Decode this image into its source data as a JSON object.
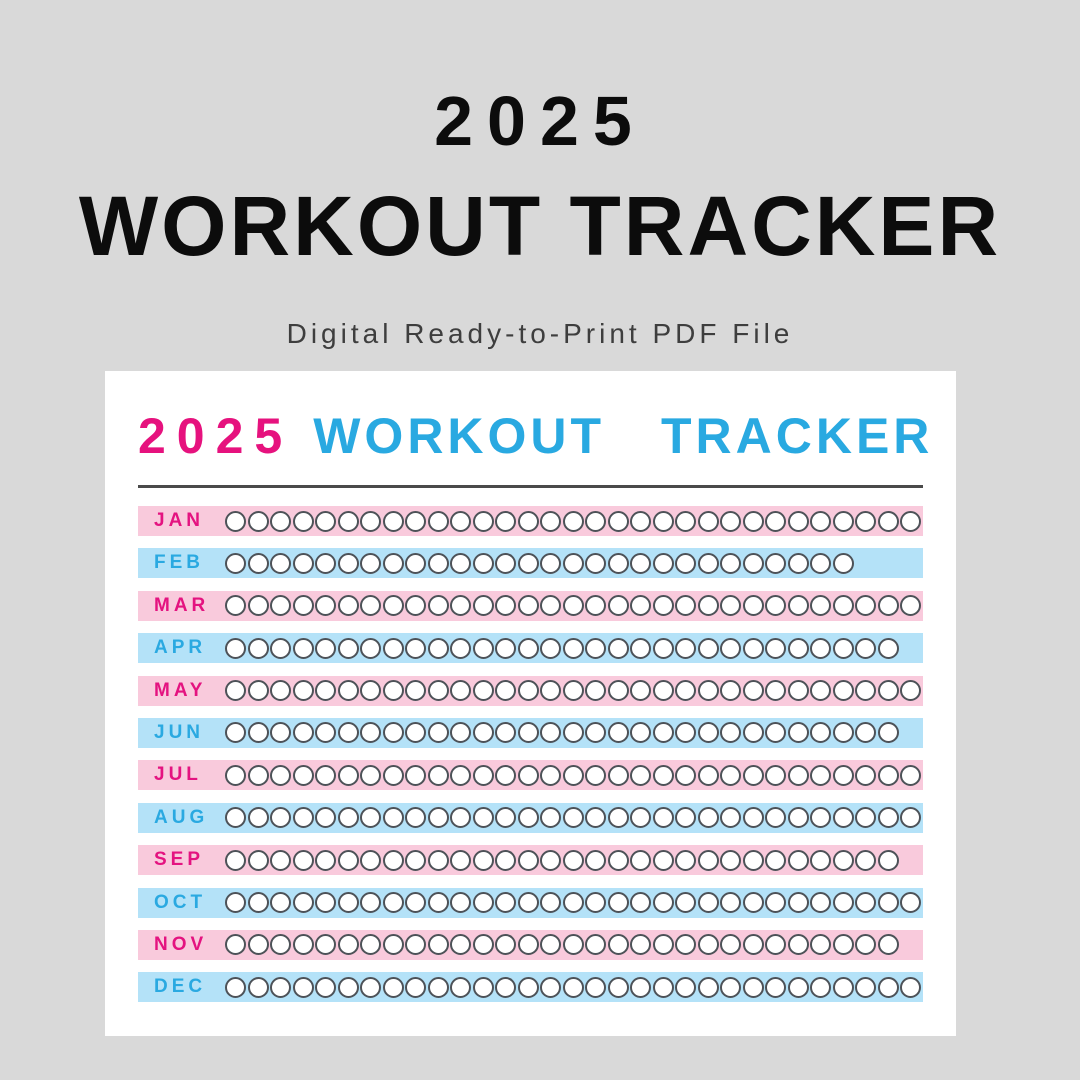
{
  "page": {
    "background_color": "#d9d9d9",
    "hero": {
      "year": "2025",
      "title": "WORKOUT TRACKER",
      "subtitle": "Digital Ready-to-Print PDF File",
      "title_color": "#0c0c0c",
      "subtitle_color": "#3e3e3e"
    }
  },
  "card": {
    "background_color": "#ffffff",
    "header": {
      "year": "2025",
      "title": "WORKOUT TRACKER",
      "year_color": "#e6127e",
      "title_color": "#29a9e1"
    },
    "divider_color": "#4a4a4a",
    "colors": {
      "pink_band": "#f9cadc",
      "blue_band": "#b4e2f8",
      "pink_label": "#e41380",
      "blue_label": "#2aa9e1",
      "circle_outline": "#4d5258",
      "circle_fill": "#ffffff"
    },
    "months": [
      {
        "label": "JAN",
        "days": 31,
        "theme": "pink"
      },
      {
        "label": "FEB",
        "days": 28,
        "theme": "blue"
      },
      {
        "label": "MAR",
        "days": 31,
        "theme": "pink"
      },
      {
        "label": "APR",
        "days": 30,
        "theme": "blue"
      },
      {
        "label": "MAY",
        "days": 31,
        "theme": "pink"
      },
      {
        "label": "JUN",
        "days": 30,
        "theme": "blue"
      },
      {
        "label": "JUL",
        "days": 31,
        "theme": "pink"
      },
      {
        "label": "AUG",
        "days": 31,
        "theme": "blue"
      },
      {
        "label": "SEP",
        "days": 30,
        "theme": "pink"
      },
      {
        "label": "OCT",
        "days": 31,
        "theme": "blue"
      },
      {
        "label": "NOV",
        "days": 30,
        "theme": "pink"
      },
      {
        "label": "DEC",
        "days": 31,
        "theme": "blue"
      }
    ]
  }
}
